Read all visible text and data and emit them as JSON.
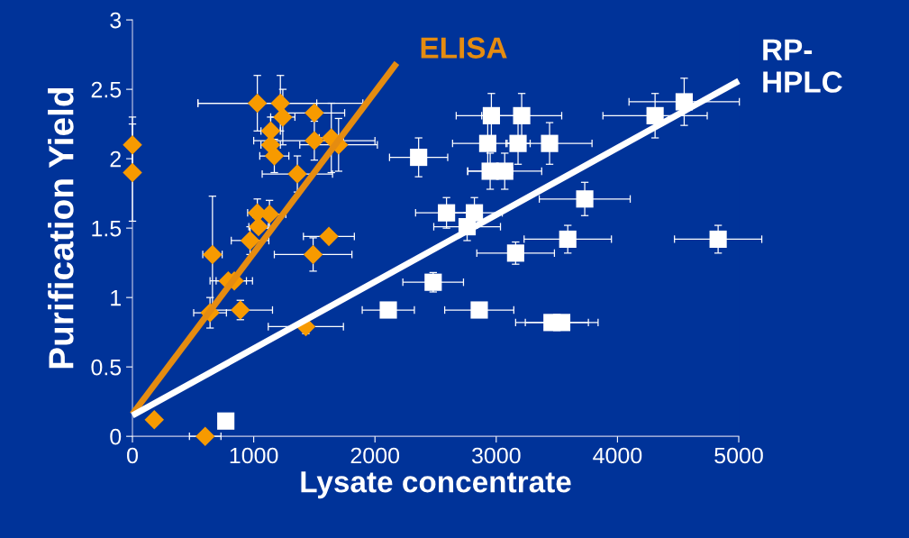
{
  "chart_data": {
    "type": "scatter",
    "xlabel": "Lysate concentrate",
    "ylabel": "Purification Yield",
    "xlim": [
      0,
      5000
    ],
    "ylim": [
      0,
      3
    ],
    "xticks": [
      0,
      1000,
      2000,
      3000,
      4000,
      5000
    ],
    "yticks": [
      0,
      0.5,
      1,
      1.5,
      2,
      2.5,
      3
    ],
    "grid": false,
    "legend": false,
    "series": [
      {
        "marker": "diamond",
        "color": "#f79a00",
        "x": [
          0,
          0,
          180,
          600,
          1030,
          1220,
          1240,
          1500,
          1140,
          1140,
          1170,
          1500,
          1640,
          1700,
          1360,
          1030,
          1130,
          1040,
          970,
          1620,
          1490,
          660,
          790,
          840,
          640,
          890,
          1430
        ],
        "values": [
          2.1,
          1.9,
          0.12,
          0,
          2.4,
          2.4,
          2.3,
          2.33,
          2.2,
          2.1,
          2.02,
          2.13,
          2.15,
          2.1,
          1.89,
          1.61,
          1.6,
          1.51,
          1.41,
          1.44,
          1.31,
          1.31,
          1.12,
          1.12,
          0.89,
          0.91,
          0.79
        ],
        "errors": [
          0.2,
          0.35,
          null,
          null,
          0.2,
          0.2,
          0.2,
          null,
          0.1,
          null,
          0.12,
          0.14,
          0.25,
          0.19,
          0.13,
          0.1,
          0.1,
          null,
          0.1,
          null,
          0.12,
          0.42,
          null,
          null,
          0.11,
          0.07,
          0.05
        ],
        "xerrors": [
          null,
          null,
          null,
          130,
          490,
          680,
          100,
          250,
          80,
          80,
          120,
          500,
          100,
          320,
          290,
          80,
          135,
          80,
          155,
          210,
          320,
          80,
          150,
          150,
          135,
          265,
          310
        ]
      },
      {
        "marker": "square",
        "color": "#ffffff",
        "x": [
          2960,
          3210,
          2930,
          3180,
          3440,
          2360,
          2950,
          3070,
          2590,
          2820,
          2760,
          3730,
          3590,
          4830,
          3160,
          2480,
          2110,
          2860,
          3460,
          3540,
          4310,
          4550,
          770
        ],
        "values": [
          2.31,
          2.31,
          2.11,
          2.11,
          2.11,
          2.01,
          1.91,
          1.91,
          1.61,
          1.61,
          1.51,
          1.71,
          1.42,
          1.42,
          1.32,
          1.11,
          0.91,
          0.91,
          0.82,
          0.82,
          2.31,
          2.41,
          0.11
        ],
        "errors": [
          0.16,
          0.16,
          0.16,
          0.15,
          0.15,
          0.14,
          0.13,
          0.13,
          0.11,
          0.11,
          0.1,
          0.12,
          0.1,
          0.1,
          0.08,
          0.07,
          0.03,
          0.03,
          0.03,
          0.03,
          0.16,
          0.17,
          0.03
        ],
        "xerrors": [
          290,
          330,
          290,
          100,
          350,
          240,
          185,
          305,
          255,
          230,
          275,
          375,
          360,
          360,
          320,
          250,
          215,
          285,
          300,
          300,
          430,
          455,
          50
        ]
      },
      {
        "type": "line",
        "name": "ELISA",
        "color": "#e58c10",
        "marker": "none",
        "line_style": "solid",
        "x": [
          0,
          2180
        ],
        "values": [
          0.16,
          2.69
        ]
      },
      {
        "type": "line",
        "name": "RP-\nHPLC",
        "color": "#ffffff",
        "marker": "none",
        "line_style": "solid",
        "x": [
          0,
          5000
        ],
        "values": [
          0.15,
          2.56
        ]
      }
    ]
  }
}
